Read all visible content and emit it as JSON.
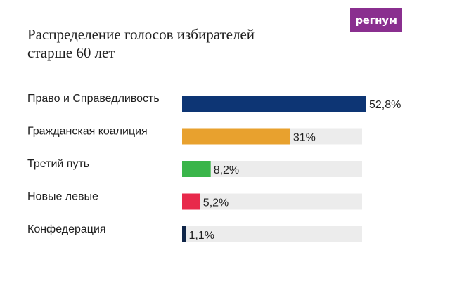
{
  "logo_text": "регнум",
  "chart_data": {
    "type": "bar",
    "orientation": "horizontal",
    "title": "Распределение голосов избирателей\nстарше 60 лет",
    "categories": [
      "Право и Справедливость",
      "Гражданская коалиция",
      "Третий путь",
      "Новые левые",
      "Конфедерация"
    ],
    "values": [
      52.8,
      31,
      8.2,
      5.2,
      1.1
    ],
    "value_labels": [
      "52,8%",
      "31%",
      "8,2%",
      "5,2%",
      "1,1%"
    ],
    "colors": [
      "#0d3574",
      "#e8a12e",
      "#3ab54a",
      "#e8294b",
      "#0f2548"
    ],
    "track_color": "#ececec",
    "xlim": [
      0,
      52.8
    ],
    "grid": false,
    "legend": "none"
  }
}
